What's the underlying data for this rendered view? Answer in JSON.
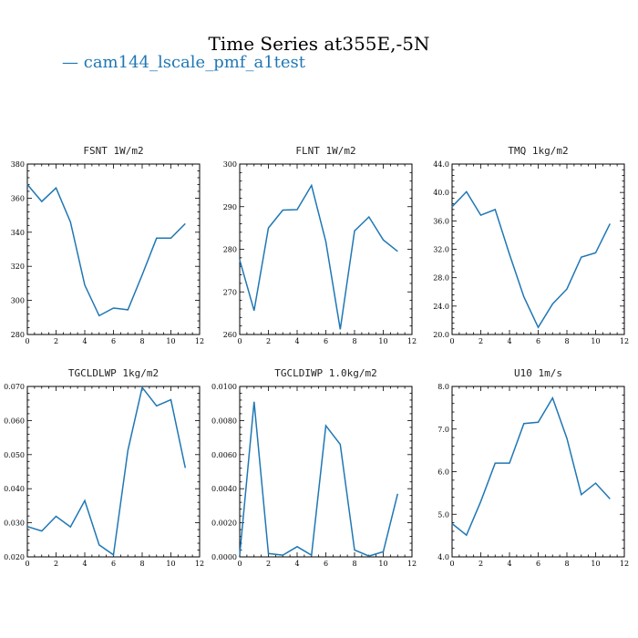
{
  "title": "Time Series at355E,-5N",
  "legend": {
    "label": "cam144_lscale_pmf_a1test",
    "marker": "—",
    "color": "#1f77b4"
  },
  "chart_data": [
    {
      "type": "line",
      "title": "FSNT  1W/m2",
      "xlim": [
        0,
        12
      ],
      "ylim": [
        280,
        380
      ],
      "xticks": [
        "0",
        "2",
        "4",
        "6",
        "8",
        "10",
        "12"
      ],
      "yticks": [
        "280",
        "300",
        "320",
        "340",
        "360",
        "380"
      ],
      "x": [
        0,
        1,
        2,
        3,
        4,
        5,
        6,
        7,
        8,
        9,
        10,
        11
      ],
      "series": [
        {
          "values": [
            368,
            358,
            366,
            346,
            309,
            291,
            295.5,
            294.5,
            315,
            336.5,
            336.5,
            345
          ]
        }
      ]
    },
    {
      "type": "line",
      "title": "FLNT  1W/m2",
      "xlim": [
        0,
        12
      ],
      "ylim": [
        260,
        300
      ],
      "xticks": [
        "0",
        "2",
        "4",
        "6",
        "8",
        "10",
        "12"
      ],
      "yticks": [
        "260",
        "270",
        "280",
        "290",
        "300"
      ],
      "x": [
        0,
        1,
        2,
        3,
        4,
        5,
        6,
        7,
        8,
        9,
        10,
        11
      ],
      "series": [
        {
          "values": [
            277.5,
            265.6,
            285,
            289.2,
            289.3,
            295,
            281.8,
            261.2,
            284.3,
            287.6,
            282.2,
            279.5
          ]
        }
      ]
    },
    {
      "type": "line",
      "title": "TMQ  1kg/m2",
      "xlim": [
        0,
        12
      ],
      "ylim": [
        20,
        44
      ],
      "xticks": [
        "0",
        "2",
        "4",
        "6",
        "8",
        "10",
        "12"
      ],
      "yticks": [
        "20.0",
        "24.0",
        "28.0",
        "32.0",
        "36.0",
        "40.0",
        "44.0"
      ],
      "x": [
        0,
        1,
        2,
        3,
        4,
        5,
        6,
        7,
        8,
        9,
        10,
        11
      ],
      "series": [
        {
          "values": [
            38,
            40.1,
            36.8,
            37.6,
            31.3,
            25.3,
            21,
            24.3,
            26.4,
            30.9,
            31.5,
            35.6
          ]
        }
      ]
    },
    {
      "type": "line",
      "title": "TGCLDLWP  1kg/m2",
      "xlim": [
        0,
        12
      ],
      "ylim": [
        0.02,
        0.07
      ],
      "xticks": [
        "0",
        "2",
        "4",
        "6",
        "8",
        "10",
        "12"
      ],
      "yticks": [
        "0.020",
        "0.030",
        "0.040",
        "0.050",
        "0.060",
        "0.070"
      ],
      "x": [
        0,
        1,
        2,
        3,
        4,
        5,
        6,
        7,
        8,
        9,
        10,
        11
      ],
      "series": [
        {
          "values": [
            0.0289,
            0.0276,
            0.0319,
            0.0288,
            0.0365,
            0.0235,
            0.0206,
            0.0512,
            0.0697,
            0.0643,
            0.0661,
            0.0461
          ]
        }
      ]
    },
    {
      "type": "line",
      "title": "TGCLDIWP  1.0kg/m2",
      "xlim": [
        0,
        12
      ],
      "ylim": [
        0,
        0.01
      ],
      "xticks": [
        "0",
        "2",
        "4",
        "6",
        "8",
        "10",
        "12"
      ],
      "yticks": [
        "0.0000",
        "0.0020",
        "0.0040",
        "0.0060",
        "0.0080",
        "0.0100"
      ],
      "x": [
        0,
        1,
        2,
        3,
        4,
        5,
        6,
        7,
        8,
        9,
        10,
        11
      ],
      "series": [
        {
          "values": [
            0.0001,
            0.0091,
            0.0002,
            0.0001,
            0.0006,
            0.0001,
            0.0077,
            0.0066,
            0.0004,
            5e-05,
            0.0003,
            0.0037
          ]
        }
      ]
    },
    {
      "type": "line",
      "title": "U10  1m/s",
      "xlim": [
        0,
        12
      ],
      "ylim": [
        4,
        8
      ],
      "xticks": [
        "0",
        "2",
        "4",
        "6",
        "8",
        "10",
        "12"
      ],
      "yticks": [
        "4.0",
        "5.0",
        "6.0",
        "7.0",
        "8.0"
      ],
      "x": [
        0,
        1,
        2,
        3,
        4,
        5,
        6,
        7,
        8,
        9,
        10,
        11
      ],
      "series": [
        {
          "values": [
            4.78,
            4.51,
            5.3,
            6.2,
            6.2,
            7.13,
            7.16,
            7.73,
            6.78,
            5.46,
            5.73,
            5.36
          ]
        }
      ]
    }
  ]
}
